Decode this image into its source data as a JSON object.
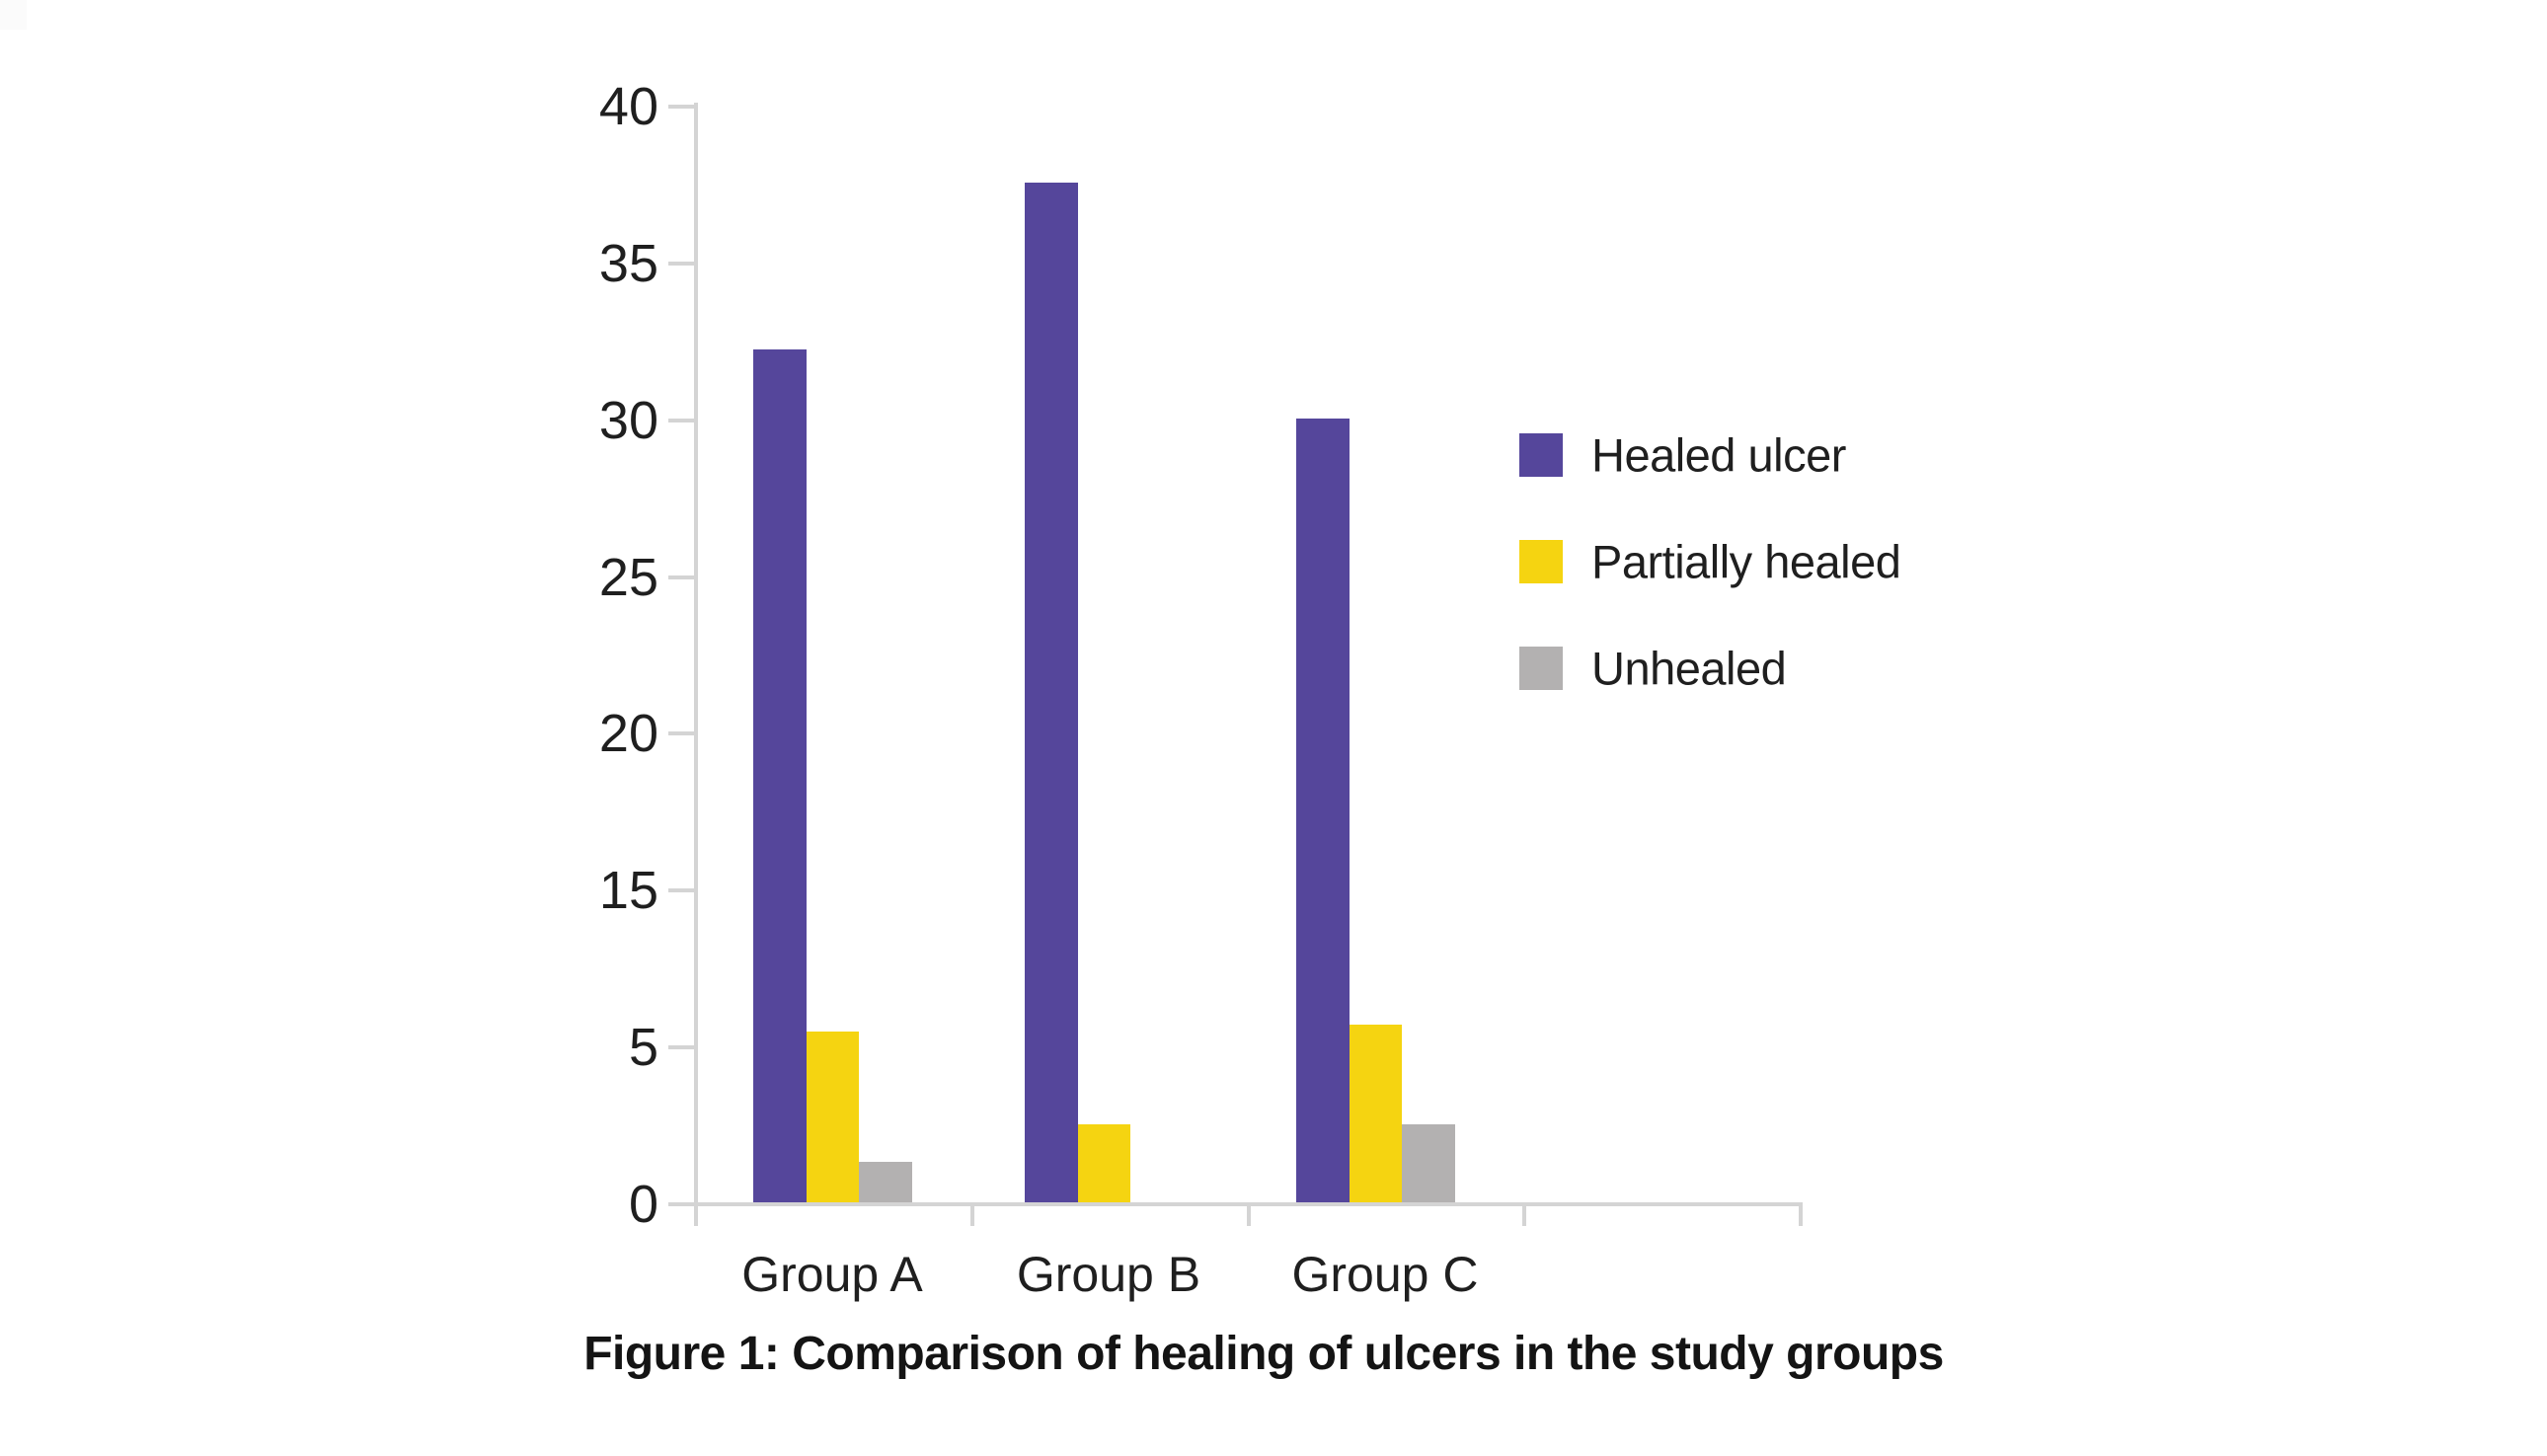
{
  "chart_data": {
    "type": "bar",
    "title": "",
    "caption": "Figure 1: Comparison of healing of ulcers in the study groups",
    "categories": [
      "Group A",
      "Group B",
      "Group C"
    ],
    "series": [
      {
        "name": "Healed ulcer",
        "color": "#55469b",
        "values": [
          32.2,
          37.5,
          30.0
        ]
      },
      {
        "name": "Partially healed",
        "color": "#f5d411",
        "values": [
          5.9,
          2.5,
          6.3
        ]
      },
      {
        "name": "Unhealed",
        "color": "#b3b1b1",
        "values": [
          1.3,
          0,
          2.5
        ]
      }
    ],
    "xlabel": "",
    "ylabel": "",
    "ylim": [
      0,
      40
    ],
    "y_tick_labels_bottom_to_top": [
      "0",
      "5",
      "15",
      "20",
      "25",
      "30",
      "35",
      "40"
    ],
    "grid": false,
    "legend_position": "right"
  }
}
